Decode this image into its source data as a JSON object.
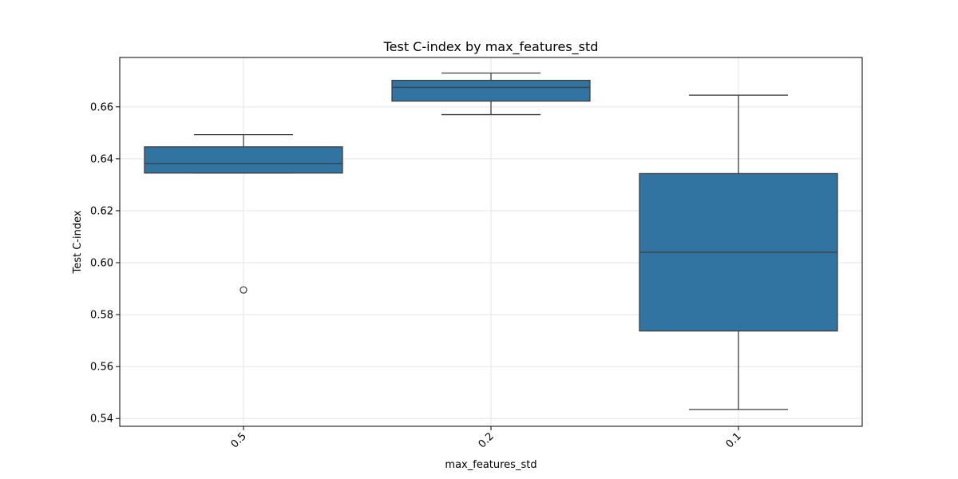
{
  "chart_data": {
    "type": "box",
    "title": "Test C-index by max_features_std",
    "xlabel": "max_features_std",
    "ylabel": "Test C-index",
    "ylim": [
      0.537,
      0.679
    ],
    "yticks": [
      0.54,
      0.56,
      0.58,
      0.6,
      0.62,
      0.64,
      0.66
    ],
    "ytick_labels": [
      "0.54",
      "0.56",
      "0.58",
      "0.60",
      "0.62",
      "0.64",
      "0.66"
    ],
    "grid": true,
    "categories": [
      "0.5",
      "0.2",
      "0.1"
    ],
    "boxes": [
      {
        "category": "0.5",
        "whisker_low": 0.6345,
        "q1": 0.6345,
        "median": 0.6382,
        "q3": 0.6446,
        "whisker_high": 0.6493,
        "outliers": [
          0.5895
        ]
      },
      {
        "category": "0.2",
        "whisker_low": 0.657,
        "q1": 0.6622,
        "median": 0.6675,
        "q3": 0.6702,
        "whisker_high": 0.673,
        "outliers": []
      },
      {
        "category": "0.1",
        "whisker_low": 0.5435,
        "q1": 0.5737,
        "median": 0.604,
        "q3": 0.6343,
        "whisker_high": 0.6645,
        "outliers": []
      }
    ],
    "colors": {
      "box_fill": "#3274a1",
      "line": "#3f3f3f",
      "grid": "#e5e5e5"
    }
  }
}
